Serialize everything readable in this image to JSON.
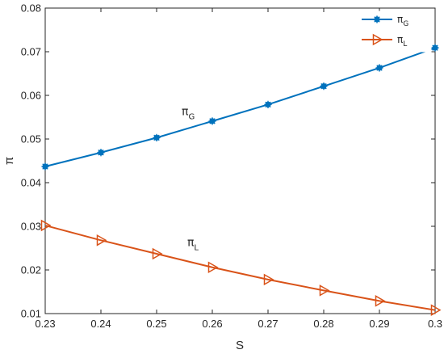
{
  "chart_data": {
    "type": "line",
    "title": "",
    "xlabel": "S",
    "ylabel": "π",
    "xlim": [
      0.23,
      0.3
    ],
    "ylim": [
      0.01,
      0.08
    ],
    "x": [
      0.23,
      0.24,
      0.25,
      0.26,
      0.27,
      0.28,
      0.29,
      0.3
    ],
    "x_tick_labels": [
      "0.23",
      "0.24",
      "0.25",
      "0.26",
      "0.27",
      "0.28",
      "0.29",
      "0.3"
    ],
    "y_tick_labels": [
      "0.01",
      "0.02",
      "0.03",
      "0.04",
      "0.05",
      "0.06",
      "0.07",
      "0.08"
    ],
    "grid": false,
    "legend_position": "top-right",
    "series": [
      {
        "name": "π_G",
        "label_base": "π",
        "label_sub": "G",
        "color": "#0072BD",
        "marker": "asterisk",
        "values": [
          0.0437,
          0.0469,
          0.0503,
          0.0541,
          0.0579,
          0.0621,
          0.0663,
          0.0709
        ]
      },
      {
        "name": "π_L",
        "label_base": "π",
        "label_sub": "L",
        "color": "#D95319",
        "marker": "triangle-right",
        "values": [
          0.0302,
          0.0268,
          0.0237,
          0.0206,
          0.0178,
          0.0153,
          0.0129,
          0.0108
        ]
      }
    ],
    "annotations": [
      {
        "base": "π",
        "sub": "G",
        "x": 0.2545,
        "y": 0.0555
      },
      {
        "base": "π",
        "sub": "L",
        "x": 0.2555,
        "y": 0.0255
      }
    ]
  }
}
